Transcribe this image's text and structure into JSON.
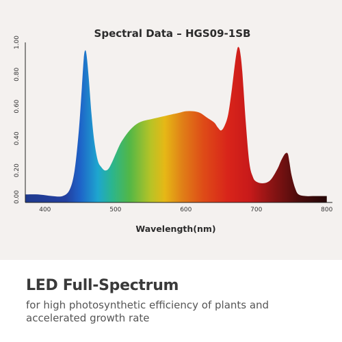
{
  "chart_data": {
    "type": "area",
    "title": "Spectral Data – HGS09-1SB",
    "xlabel": "Wavelength(nm)",
    "ylabel": "",
    "xlim": [
      372,
      808
    ],
    "ylim": [
      0,
      1.0
    ],
    "x_ticks": [
      "400",
      "500",
      "600",
      "700",
      "800"
    ],
    "y_ticks": [
      "0.00",
      "0.20",
      "0.40",
      "0.60",
      "0.80",
      "1.00"
    ],
    "legend": "none",
    "grid": false,
    "series": [
      {
        "x": [
          372,
          390,
          410,
          425,
          435,
          442,
          448,
          452,
          455,
          457,
          459,
          462,
          466,
          470,
          475,
          480,
          485,
          490,
          495,
          500,
          505,
          510,
          520,
          530,
          540,
          550,
          560,
          570,
          580,
          590,
          600,
          610,
          620,
          630,
          640,
          645,
          650,
          655,
          660,
          665,
          670,
          673,
          675,
          677,
          680,
          685,
          690,
          695,
          700,
          710,
          720,
          730,
          735,
          740,
          743,
          745,
          747,
          750,
          755,
          760,
          770,
          780,
          790,
          800
        ],
        "y": [
          0.05,
          0.05,
          0.04,
          0.04,
          0.08,
          0.2,
          0.45,
          0.7,
          0.9,
          0.95,
          0.92,
          0.78,
          0.55,
          0.38,
          0.26,
          0.22,
          0.2,
          0.21,
          0.25,
          0.3,
          0.35,
          0.39,
          0.45,
          0.49,
          0.51,
          0.52,
          0.53,
          0.54,
          0.55,
          0.56,
          0.57,
          0.57,
          0.56,
          0.53,
          0.5,
          0.47,
          0.45,
          0.48,
          0.55,
          0.7,
          0.88,
          0.96,
          0.97,
          0.94,
          0.82,
          0.5,
          0.25,
          0.16,
          0.13,
          0.12,
          0.14,
          0.21,
          0.26,
          0.3,
          0.31,
          0.3,
          0.25,
          0.17,
          0.09,
          0.05,
          0.04,
          0.04,
          0.04,
          0.04
        ]
      }
    ],
    "gradient": [
      {
        "nm": 372,
        "color": "#1f3a8e"
      },
      {
        "nm": 430,
        "color": "#2340a0"
      },
      {
        "nm": 450,
        "color": "#1e63c8"
      },
      {
        "nm": 475,
        "color": "#1ea6cf"
      },
      {
        "nm": 495,
        "color": "#2bb58e"
      },
      {
        "nm": 520,
        "color": "#52b747"
      },
      {
        "nm": 550,
        "color": "#b7c326"
      },
      {
        "nm": 570,
        "color": "#e6b816"
      },
      {
        "nm": 595,
        "color": "#e07f17"
      },
      {
        "nm": 625,
        "color": "#de4b17"
      },
      {
        "nm": 660,
        "color": "#d8241a"
      },
      {
        "nm": 690,
        "color": "#c81a1a"
      },
      {
        "nm": 720,
        "color": "#8e1414"
      },
      {
        "nm": 760,
        "color": "#4b0c0c"
      },
      {
        "nm": 808,
        "color": "#1c0606"
      }
    ]
  },
  "footer": {
    "headline": "LED Full-Spectrum",
    "subline": "for high photosynthetic efficiency of plants and accelerated growth rate"
  }
}
